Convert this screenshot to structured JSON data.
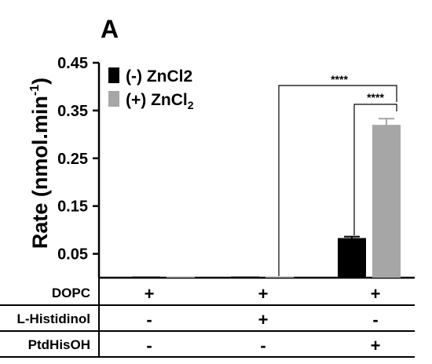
{
  "panel_label": "A",
  "chart_data": {
    "type": "bar",
    "ylabel_main": "Rate (nmol.min",
    "ylabel_sup": "-1",
    "ylabel_end": ")",
    "ylim": [
      0.0,
      0.45
    ],
    "yticks": [
      "0.05",
      "0.15",
      "0.25",
      "0.35",
      "0.45"
    ],
    "ytick_values": [
      0.05,
      0.15,
      0.25,
      0.35,
      0.45
    ],
    "categories": [
      "DOPC",
      "DOPC + L-Histidinol",
      "DOPC + PtdHisOH"
    ],
    "series": [
      {
        "name": "(-) ZnCl2",
        "color": "#000000",
        "values": [
          0.001,
          0.001,
          0.083
        ],
        "errors": [
          0.0,
          0.0,
          0.003
        ]
      },
      {
        "name_main": "(+) ZnCl",
        "name_sub": "2",
        "color": "#a6a6a6",
        "values": [
          0.002,
          0.001,
          0.32
        ],
        "errors": [
          0.0,
          0.0,
          0.013
        ]
      }
    ],
    "significance": [
      "****",
      "****"
    ],
    "legend": "top-left"
  },
  "condition_table": {
    "rows": [
      {
        "label": "DOPC",
        "cells": [
          "+",
          "+",
          "+"
        ]
      },
      {
        "label": "L-Histidinol",
        "cells": [
          "-",
          "+",
          "-"
        ]
      },
      {
        "label": "PtdHisOH",
        "cells": [
          "-",
          "-",
          "+"
        ]
      }
    ]
  }
}
